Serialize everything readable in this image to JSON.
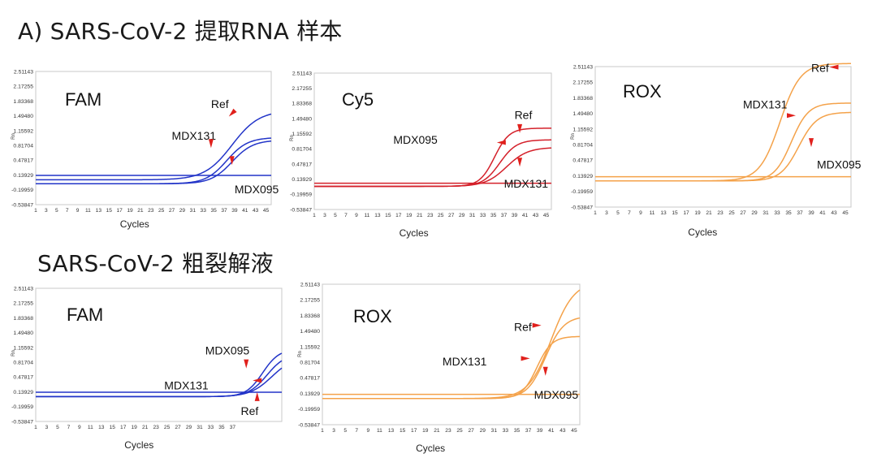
{
  "headings": {
    "section_a": "A) SARS-CoV-2 提取RNA 样本",
    "section_b": "SARS-CoV-2 粗裂解液"
  },
  "colors": {
    "blue": "#2234c8",
    "red": "#d4202a",
    "orange": "#f4a24a",
    "arrow": "#e0201c",
    "frame": "#c8c8c8"
  },
  "chart_data": [
    {
      "id": "a-fam",
      "type": "line",
      "dye": "FAM",
      "color": "blue",
      "xlabel": "Cycles",
      "ylabel": "Rn",
      "x_ticks": [
        1,
        3,
        5,
        7,
        9,
        11,
        13,
        15,
        17,
        19,
        21,
        23,
        25,
        27,
        29,
        31,
        33,
        35,
        37,
        39,
        41,
        43,
        45
      ],
      "y_ticks": [
        "2.51143",
        "2.17255",
        "1.83368",
        "1.49480",
        "1.15592",
        "0.81704",
        "0.47817",
        "0.13929",
        "-0.19959",
        "-0.53847"
      ],
      "ylim": [
        -0.53847,
        2.51143
      ],
      "xlim": [
        1,
        46
      ],
      "curves": [
        {
          "label": "Ref",
          "baseline": 0.03,
          "plateau": 1.62,
          "midpoint": 38.5,
          "slope": 2.6
        },
        {
          "label": "MDX131",
          "baseline": -0.06,
          "plateau": 1.0,
          "midpoint": 37.5,
          "slope": 2.0
        },
        {
          "label": "MDX095",
          "baseline": -0.06,
          "plateau": 0.94,
          "midpoint": 38.5,
          "slope": 2.0
        },
        {
          "label": "",
          "baseline": 0.13,
          "plateau": 0.13,
          "midpoint": 30,
          "slope": 2.0
        }
      ],
      "annotations": [
        {
          "text": "Ref",
          "x": 34.5,
          "y": 1.67
        },
        {
          "text": "MDX131",
          "x": 27.0,
          "y": 0.95
        },
        {
          "text": "MDX095",
          "x": 39.0,
          "y": -0.28
        }
      ],
      "arrows": [
        {
          "x": 38.5,
          "y": 1.55,
          "dir": "down-left"
        },
        {
          "x": 34.5,
          "y": 0.86,
          "dir": "down"
        },
        {
          "x": 38.5,
          "y": 0.47,
          "dir": "down"
        }
      ]
    },
    {
      "id": "a-cy5",
      "type": "line",
      "dye": "Cy5",
      "color": "red",
      "xlabel": "Cycles",
      "ylabel": "Rn",
      "x_ticks": [
        1,
        3,
        5,
        7,
        9,
        11,
        13,
        15,
        17,
        19,
        21,
        23,
        25,
        27,
        29,
        31,
        33,
        35,
        37,
        39,
        41,
        43,
        45
      ],
      "y_ticks": [
        "2.51143",
        "2.17255",
        "1.83368",
        "1.49480",
        "1.15592",
        "0.81704",
        "0.47817",
        "0.13929",
        "-0.19959",
        "-0.53847"
      ],
      "ylim": [
        -0.53847,
        2.51143
      ],
      "xlim": [
        1,
        46
      ],
      "curves": [
        {
          "label": "Ref",
          "baseline": -0.02,
          "plateau": 1.28,
          "midpoint": 35.2,
          "slope": 1.4
        },
        {
          "label": "MDX095",
          "baseline": -0.02,
          "plateau": 1.02,
          "midpoint": 36.2,
          "slope": 1.6
        },
        {
          "label": "MDX131",
          "baseline": -0.02,
          "plateau": 0.85,
          "midpoint": 37.5,
          "slope": 2.0
        },
        {
          "label": "",
          "baseline": 0.05,
          "plateau": 0.05,
          "midpoint": 30,
          "slope": 2.0
        }
      ],
      "annotations": [
        {
          "text": "Ref",
          "x": 39.0,
          "y": 1.49
        },
        {
          "text": "MDX095",
          "x": 16.0,
          "y": 0.93
        },
        {
          "text": "MDX131",
          "x": 37.0,
          "y": -0.05
        }
      ],
      "arrows": [
        {
          "x": 40.0,
          "y": 1.27,
          "dir": "down"
        },
        {
          "x": 36.5,
          "y": 0.96,
          "dir": "left"
        },
        {
          "x": 40.0,
          "y": 0.52,
          "dir": "down"
        }
      ]
    },
    {
      "id": "a-rox",
      "type": "line",
      "dye": "ROX",
      "color": "orange",
      "xlabel": "Cycles",
      "ylabel": "Rn",
      "x_ticks": [
        1,
        3,
        5,
        7,
        9,
        11,
        13,
        15,
        17,
        19,
        21,
        23,
        25,
        27,
        29,
        31,
        33,
        35,
        37,
        39,
        41,
        43,
        45
      ],
      "y_ticks": [
        "2.51143",
        "2.17255",
        "1.83368",
        "1.49480",
        "1.15592",
        "0.81704",
        "0.47817",
        "0.13929",
        "-0.19959",
        "-0.53847"
      ],
      "ylim": [
        -0.53847,
        2.51143
      ],
      "xlim": [
        1,
        46
      ],
      "curves": [
        {
          "label": "Ref",
          "baseline": 0.03,
          "plateau": 2.58,
          "midpoint": 33.5,
          "slope": 1.8
        },
        {
          "label": "MDX131",
          "baseline": 0.03,
          "plateau": 1.72,
          "midpoint": 35.5,
          "slope": 1.5
        },
        {
          "label": "MDX095",
          "baseline": 0.03,
          "plateau": 1.52,
          "midpoint": 36.8,
          "slope": 1.6
        },
        {
          "label": "",
          "baseline": 0.12,
          "plateau": 0.12,
          "midpoint": 30,
          "slope": 2.0
        }
      ],
      "annotations": [
        {
          "text": "Ref",
          "x": 39.0,
          "y": 2.4
        },
        {
          "text": "MDX131",
          "x": 27.0,
          "y": 1.6
        },
        {
          "text": "MDX095",
          "x": 40.0,
          "y": 0.3
        }
      ],
      "arrows": [
        {
          "x": 43.0,
          "y": 2.5,
          "dir": "left"
        },
        {
          "x": 35.5,
          "y": 1.45,
          "dir": "right"
        },
        {
          "x": 39.0,
          "y": 0.86,
          "dir": "down"
        }
      ]
    },
    {
      "id": "b-fam",
      "type": "line",
      "dye": "FAM",
      "color": "blue",
      "xlabel": "Cycles",
      "ylabel": "Rn",
      "x_ticks": [
        1,
        3,
        5,
        7,
        9,
        11,
        13,
        15,
        17,
        19,
        21,
        23,
        25,
        27,
        29,
        31,
        33,
        35,
        37
      ],
      "y_ticks": [
        "2.51143",
        "2.17255",
        "1.83368",
        "1.49480",
        "1.15592",
        "0.81704",
        "0.47817",
        "0.13929",
        "-0.19959",
        "-0.53847"
      ],
      "ylim": [
        -0.53847,
        2.51143
      ],
      "xlim": [
        1,
        46
      ],
      "curves": [
        {
          "label": "MDX095",
          "baseline": 0.03,
          "plateau": 1.12,
          "midpoint": 42.5,
          "slope": 1.5
        },
        {
          "label": "MDX131",
          "baseline": 0.03,
          "plateau": 1.02,
          "midpoint": 43.3,
          "slope": 1.7
        },
        {
          "label": "Ref",
          "baseline": 0.03,
          "plateau": 0.95,
          "midpoint": 44.2,
          "slope": 2.0
        },
        {
          "label": "",
          "baseline": 0.13,
          "plateau": 0.13,
          "midpoint": 30,
          "slope": 2.0
        }
      ],
      "annotations": [
        {
          "text": "MDX095",
          "x": 32.0,
          "y": 1.0
        },
        {
          "text": "MDX131",
          "x": 24.5,
          "y": 0.2
        },
        {
          "text": "Ref",
          "x": 38.5,
          "y": -0.39
        }
      ],
      "arrows": [
        {
          "x": 39.5,
          "y": 0.78,
          "dir": "down"
        },
        {
          "x": 41.5,
          "y": 0.4,
          "dir": "left"
        },
        {
          "x": 41.5,
          "y": 0.03,
          "dir": "up"
        }
      ]
    },
    {
      "id": "b-rox",
      "type": "line",
      "dye": "ROX",
      "color": "orange",
      "xlabel": "Cycles",
      "ylabel": "Rn",
      "x_ticks": [
        1,
        3,
        5,
        7,
        9,
        11,
        13,
        15,
        17,
        19,
        21,
        23,
        25,
        27,
        29,
        31,
        33,
        35,
        37,
        39,
        41,
        43,
        45
      ],
      "y_ticks": [
        "2.51143",
        "2.17255",
        "1.83368",
        "1.49480",
        "1.15592",
        "0.81704",
        "0.47817",
        "0.13929",
        "-0.19959",
        "-0.53847"
      ],
      "ylim": [
        -0.53847,
        2.51143
      ],
      "xlim": [
        1,
        46
      ],
      "curves": [
        {
          "label": "Ref",
          "baseline": 0.03,
          "plateau": 2.58,
          "midpoint": 41.0,
          "slope": 2.0
        },
        {
          "label": "MDX131",
          "baseline": 0.03,
          "plateau": 1.82,
          "midpoint": 40.0,
          "slope": 1.6
        },
        {
          "label": "MDX095",
          "baseline": 0.03,
          "plateau": 1.38,
          "midpoint": 38.5,
          "slope": 1.3
        },
        {
          "label": "",
          "baseline": 0.12,
          "plateau": 0.12,
          "midpoint": 30,
          "slope": 2.0
        }
      ],
      "annotations": [
        {
          "text": "Ref",
          "x": 34.5,
          "y": 1.5
        },
        {
          "text": "MDX131",
          "x": 22.0,
          "y": 0.75
        },
        {
          "text": "MDX095",
          "x": 38.0,
          "y": 0.03
        }
      ],
      "arrows": [
        {
          "x": 38.5,
          "y": 1.62,
          "dir": "right"
        },
        {
          "x": 36.5,
          "y": 0.9,
          "dir": "right"
        },
        {
          "x": 40.0,
          "y": 0.62,
          "dir": "down"
        }
      ]
    }
  ]
}
